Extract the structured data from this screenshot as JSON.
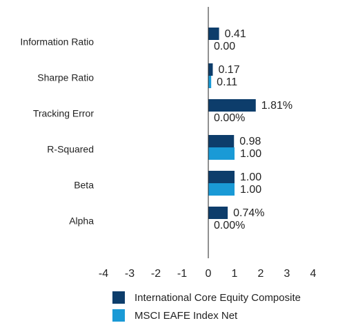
{
  "chart_data": {
    "type": "hbar",
    "categories": [
      "Information Ratio",
      "Sharpe Ratio",
      "Tracking Error",
      "R-Squared",
      "Beta",
      "Alpha"
    ],
    "series": [
      {
        "name": "International Core Equity Composite",
        "color": "#0d3d6b",
        "values": [
          0.41,
          0.17,
          1.81,
          0.98,
          1.0,
          0.74
        ],
        "value_labels": [
          "0.41",
          "0.17",
          "1.81%",
          "0.98",
          "1.00",
          "0.74%"
        ]
      },
      {
        "name": "MSCI EAFE Index Net",
        "color": "#1a9ad6",
        "values": [
          0.0,
          0.11,
          0.0,
          1.0,
          1.0,
          0.0
        ],
        "value_labels": [
          "0.00",
          "0.11",
          "0.00%",
          "1.00",
          "1.00",
          "0.00%"
        ]
      }
    ],
    "xlim": [
      -4,
      4
    ],
    "xticks": [
      -4,
      -3,
      -2,
      -1,
      0,
      1,
      2,
      3,
      4
    ],
    "legend": "bottom"
  }
}
